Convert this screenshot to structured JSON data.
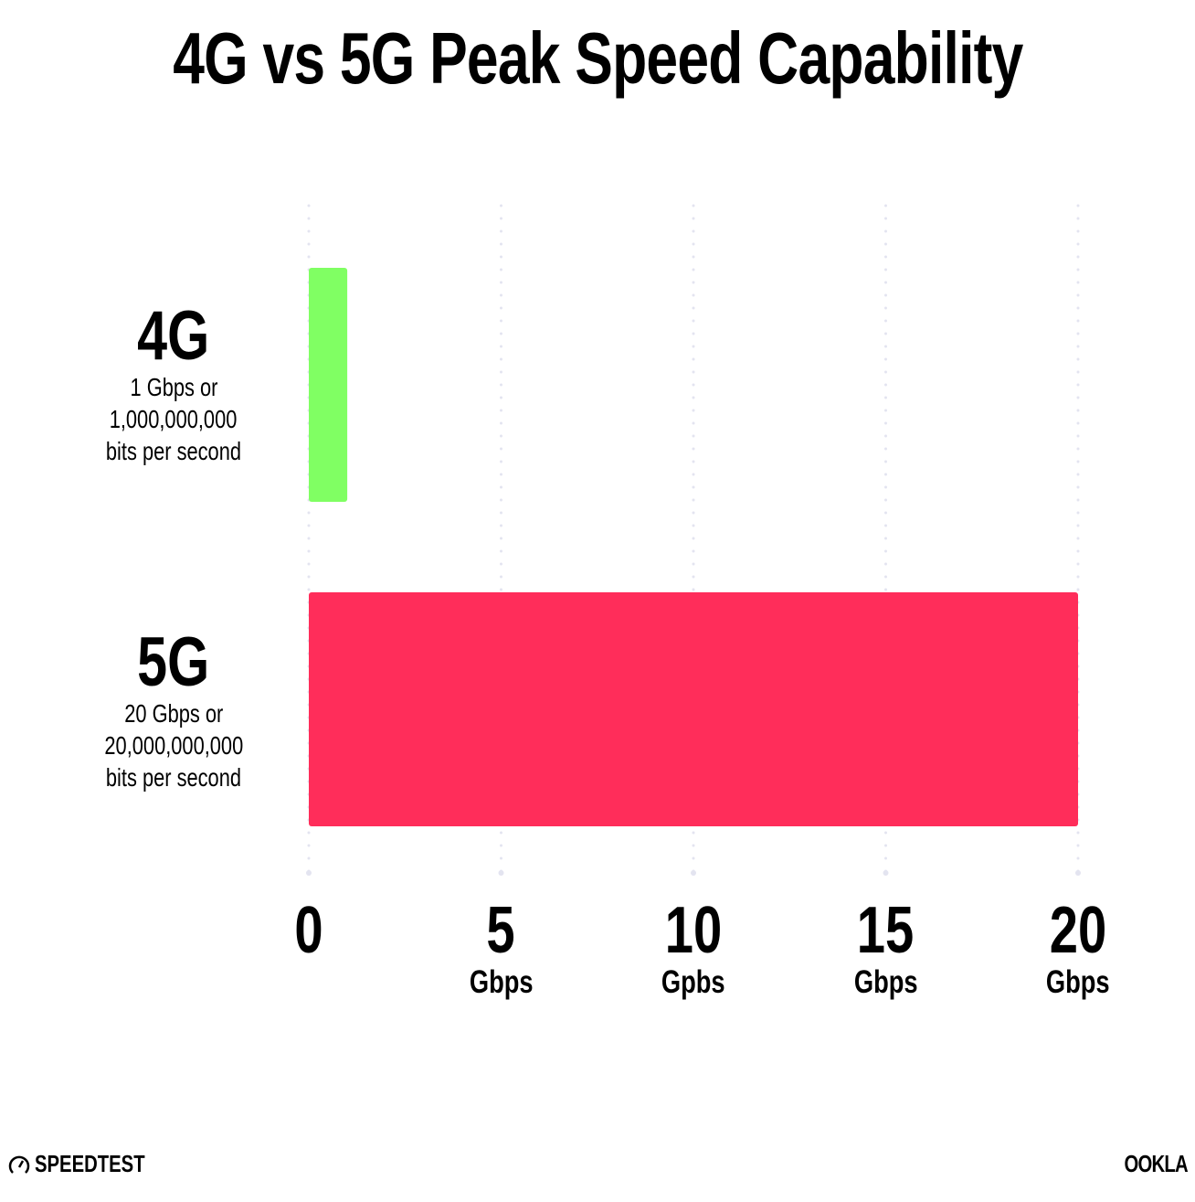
{
  "chart_data": {
    "type": "bar",
    "orientation": "horizontal",
    "title": "4G vs 5G Peak Speed Capability",
    "categories": [
      {
        "name": "4G",
        "description": [
          "1 Gbps or",
          "1,000,000,000",
          "bits per second"
        ]
      },
      {
        "name": "5G",
        "description": [
          "20 Gbps or",
          "20,000,000,000",
          "bits per second"
        ]
      }
    ],
    "values": [
      1,
      20
    ],
    "colors": [
      "#80ff63",
      "#ff2d5a"
    ],
    "xlim": [
      0,
      20
    ],
    "xticks": [
      {
        "value": 0,
        "label": "0",
        "unit": ""
      },
      {
        "value": 5,
        "label": "5",
        "unit": "Gbps"
      },
      {
        "value": 10,
        "label": "10",
        "unit": "Gpbs"
      },
      {
        "value": 15,
        "label": "15",
        "unit": "Gbps"
      },
      {
        "value": 20,
        "label": "20",
        "unit": "Gbps"
      }
    ],
    "grid": true,
    "grid_color": "#e3e4f0"
  },
  "footer": {
    "left_logo": "SPEEDTEST",
    "right_logo": "OOKLA"
  }
}
